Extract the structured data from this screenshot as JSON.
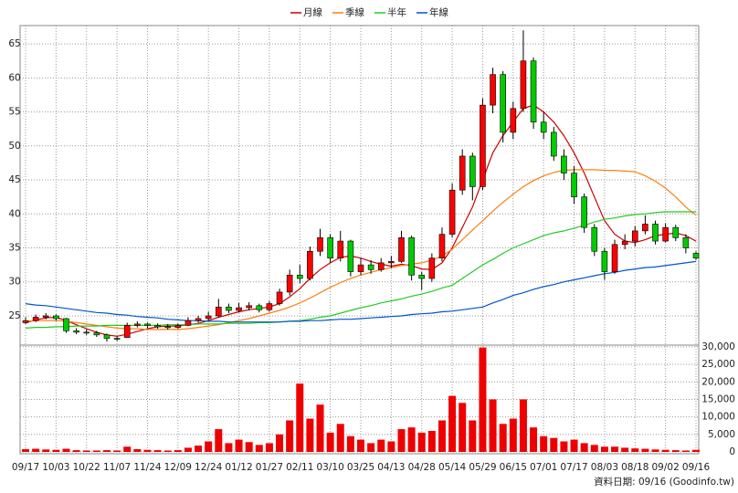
{
  "chart_data": {
    "type": "candlestick",
    "categories": [
      "09/17",
      null,
      null,
      "10/03",
      null,
      null,
      "10/22",
      null,
      null,
      "11/07",
      null,
      null,
      "11/24",
      null,
      null,
      "12/09",
      null,
      null,
      "12/24",
      null,
      null,
      "01/12",
      null,
      null,
      "01/27",
      null,
      null,
      "02/11",
      null,
      null,
      "03/10",
      null,
      null,
      "03/25",
      null,
      null,
      "04/13",
      null,
      null,
      "04/28",
      null,
      null,
      "05/14",
      null,
      null,
      "05/29",
      null,
      null,
      "06/15",
      null,
      null,
      "07/01",
      null,
      null,
      "07/17",
      null,
      null,
      "08/03",
      null,
      null,
      "08/18",
      null,
      null,
      "09/02",
      null,
      null,
      "09/16"
    ],
    "ohlc": [
      [
        24.0,
        24.8,
        23.8,
        24.3
      ],
      [
        24.3,
        25.2,
        24.1,
        24.8
      ],
      [
        24.8,
        25.4,
        24.5,
        25.0
      ],
      [
        25.0,
        25.2,
        24.3,
        24.6
      ],
      [
        24.6,
        24.7,
        22.5,
        22.8
      ],
      [
        22.8,
        23.2,
        22.3,
        22.6
      ],
      [
        22.6,
        23.0,
        22.2,
        22.5
      ],
      [
        22.5,
        22.8,
        21.9,
        22.2
      ],
      [
        22.2,
        22.4,
        21.2,
        21.7
      ],
      [
        21.7,
        22.0,
        21.3,
        21.6
      ],
      [
        21.8,
        24.0,
        21.8,
        23.6
      ],
      [
        23.6,
        24.2,
        23.3,
        23.8
      ],
      [
        23.8,
        24.0,
        23.2,
        23.6
      ],
      [
        23.6,
        23.9,
        23.1,
        23.4
      ],
      [
        23.4,
        23.8,
        23.0,
        23.3
      ],
      [
        23.3,
        23.9,
        23.1,
        23.6
      ],
      [
        23.6,
        24.8,
        23.5,
        24.3
      ],
      [
        24.3,
        25.0,
        24.0,
        24.6
      ],
      [
        24.6,
        25.6,
        24.3,
        25.0
      ],
      [
        25.0,
        27.5,
        24.8,
        26.3
      ],
      [
        26.3,
        26.8,
        25.4,
        25.8
      ],
      [
        25.8,
        26.9,
        25.5,
        26.2
      ],
      [
        26.2,
        27.0,
        25.8,
        26.5
      ],
      [
        26.5,
        26.8,
        25.5,
        25.9
      ],
      [
        25.9,
        27.2,
        25.6,
        26.8
      ],
      [
        26.8,
        29.0,
        26.5,
        28.5
      ],
      [
        28.5,
        31.8,
        28.0,
        31.0
      ],
      [
        31.0,
        32.5,
        29.8,
        30.5
      ],
      [
        30.5,
        35.2,
        30.2,
        34.5
      ],
      [
        34.5,
        37.8,
        33.8,
        36.5
      ],
      [
        36.5,
        37.0,
        32.8,
        33.5
      ],
      [
        33.5,
        37.5,
        33.0,
        36.0
      ],
      [
        36.0,
        36.2,
        30.8,
        31.5
      ],
      [
        31.5,
        33.5,
        31.0,
        32.5
      ],
      [
        32.5,
        33.2,
        31.2,
        31.8
      ],
      [
        31.8,
        33.5,
        31.5,
        32.8
      ],
      [
        32.8,
        33.8,
        32.0,
        33.0
      ],
      [
        33.0,
        37.5,
        32.8,
        36.5
      ],
      [
        36.5,
        36.8,
        30.2,
        31.0
      ],
      [
        31.0,
        31.5,
        28.8,
        30.5
      ],
      [
        30.5,
        34.2,
        30.0,
        33.5
      ],
      [
        33.5,
        38.0,
        33.0,
        37.0
      ],
      [
        37.0,
        44.5,
        36.5,
        43.5
      ],
      [
        43.5,
        49.5,
        42.8,
        48.5
      ],
      [
        48.5,
        49.0,
        42.0,
        44.0
      ],
      [
        44.0,
        57.0,
        43.5,
        56.0
      ],
      [
        56.0,
        61.5,
        54.8,
        60.5
      ],
      [
        60.5,
        61.0,
        50.5,
        52.0
      ],
      [
        52.0,
        56.5,
        51.0,
        55.5
      ],
      [
        55.5,
        67.0,
        55.0,
        62.5
      ],
      [
        62.5,
        63.0,
        52.5,
        53.5
      ],
      [
        53.5,
        55.0,
        51.0,
        52.0
      ],
      [
        52.0,
        52.8,
        47.8,
        48.5
      ],
      [
        48.5,
        49.5,
        45.0,
        46.0
      ],
      [
        46.0,
        47.0,
        41.5,
        42.5
      ],
      [
        42.5,
        43.0,
        37.2,
        38.0
      ],
      [
        38.0,
        38.5,
        33.8,
        34.5
      ],
      [
        34.5,
        35.0,
        30.3,
        31.5
      ],
      [
        31.5,
        36.2,
        31.2,
        35.5
      ],
      [
        35.5,
        37.0,
        34.8,
        36.0
      ],
      [
        36.0,
        38.2,
        35.2,
        37.5
      ],
      [
        37.5,
        39.8,
        37.0,
        38.5
      ],
      [
        38.5,
        39.0,
        35.5,
        36.0
      ],
      [
        36.0,
        38.6,
        35.8,
        38.0
      ],
      [
        38.0,
        38.4,
        36.0,
        36.5
      ],
      [
        36.5,
        37.0,
        34.2,
        35.0
      ],
      [
        34.2,
        34.5,
        33.2,
        33.5
      ]
    ],
    "up_color": "#ff0000",
    "down_color": "#00cc00",
    "series": [
      {
        "name": "月線",
        "color": "#cc0000",
        "values": [
          24.0,
          24.4,
          24.7,
          24.8,
          24.3,
          23.7,
          23.1,
          22.6,
          22.2,
          22.0,
          22.3,
          22.7,
          23.1,
          23.4,
          23.5,
          23.5,
          23.7,
          23.9,
          24.3,
          24.8,
          25.2,
          25.6,
          25.9,
          26.1,
          26.3,
          26.8,
          27.8,
          29.0,
          30.5,
          31.8,
          32.8,
          33.6,
          33.8,
          33.5,
          33.0,
          32.6,
          32.3,
          32.6,
          32.4,
          31.9,
          31.8,
          32.8,
          35.0,
          38.0,
          41.0,
          45.0,
          49.0,
          51.5,
          53.5,
          55.5,
          56.0,
          55.0,
          53.5,
          51.5,
          49.0,
          46.0,
          42.5,
          39.0,
          37.0,
          36.0,
          35.8,
          36.2,
          36.8,
          37.0,
          37.2,
          36.8,
          36.0
        ]
      },
      {
        "name": "季線",
        "color": "#ff7f0e",
        "values": [
          24.2,
          24.3,
          24.3,
          24.3,
          24.2,
          24.0,
          23.8,
          23.6,
          23.4,
          23.2,
          23.1,
          23.1,
          23.0,
          23.0,
          23.0,
          23.0,
          23.1,
          23.3,
          23.5,
          23.7,
          24.0,
          24.3,
          24.6,
          25.0,
          25.4,
          25.8,
          26.3,
          26.9,
          27.6,
          28.4,
          29.2,
          29.9,
          30.5,
          31.0,
          31.4,
          31.8,
          32.1,
          32.4,
          32.6,
          32.8,
          33.2,
          33.8,
          34.8,
          36.2,
          37.6,
          39.0,
          40.4,
          41.7,
          42.9,
          44.0,
          44.9,
          45.6,
          46.1,
          46.4,
          46.5,
          46.5,
          46.5,
          46.4,
          46.4,
          46.3,
          46.2,
          45.6,
          44.8,
          43.8,
          42.5,
          41.0,
          39.8
        ]
      },
      {
        "name": "半年",
        "color": "#22cc22",
        "values": [
          23.2,
          23.3,
          23.3,
          23.4,
          23.4,
          23.5,
          23.5,
          23.5,
          23.6,
          23.6,
          23.6,
          23.6,
          23.6,
          23.6,
          23.7,
          23.7,
          23.7,
          23.8,
          23.8,
          23.8,
          23.9,
          23.9,
          23.9,
          24.0,
          24.0,
          24.1,
          24.2,
          24.3,
          24.5,
          24.8,
          25.0,
          25.4,
          25.8,
          26.2,
          26.5,
          26.9,
          27.2,
          27.5,
          27.9,
          28.2,
          28.6,
          29.1,
          29.5,
          30.5,
          31.5,
          32.5,
          33.3,
          34.2,
          35.0,
          35.6,
          36.2,
          36.8,
          37.2,
          37.5,
          37.9,
          38.3,
          38.8,
          39.2,
          39.4,
          39.7,
          39.9,
          40.0,
          40.2,
          40.3,
          40.3,
          40.3,
          40.3
        ]
      },
      {
        "name": "年線",
        "color": "#0055cc",
        "values": [
          26.8,
          26.6,
          26.5,
          26.3,
          26.1,
          25.9,
          25.7,
          25.5,
          25.4,
          25.2,
          25.1,
          24.9,
          24.8,
          24.7,
          24.5,
          24.4,
          24.3,
          24.3,
          24.2,
          24.2,
          24.1,
          24.1,
          24.1,
          24.1,
          24.1,
          24.1,
          24.2,
          24.2,
          24.3,
          24.3,
          24.4,
          24.5,
          24.5,
          24.6,
          24.7,
          24.8,
          24.9,
          25.0,
          25.2,
          25.3,
          25.4,
          25.6,
          25.7,
          25.9,
          26.1,
          26.3,
          26.9,
          27.4,
          28.0,
          28.4,
          28.9,
          29.3,
          29.6,
          30.0,
          30.3,
          30.6,
          30.9,
          31.2,
          31.4,
          31.7,
          31.9,
          32.1,
          32.2,
          32.4,
          32.6,
          32.8,
          33.0
        ]
      }
    ],
    "volume": [
      800,
      900,
      700,
      600,
      900,
      500,
      400,
      400,
      500,
      400,
      1500,
      800,
      600,
      500,
      400,
      500,
      1200,
      1800,
      3000,
      6500,
      2500,
      3500,
      2800,
      2000,
      2500,
      5000,
      9000,
      19500,
      9500,
      13500,
      5500,
      8000,
      4500,
      3500,
      2500,
      3500,
      3000,
      6500,
      7000,
      5500,
      6000,
      9000,
      16000,
      14000,
      9000,
      29800,
      15000,
      8000,
      9500,
      15000,
      7000,
      4500,
      4000,
      3000,
      3500,
      2500,
      2000,
      1500,
      1500,
      1200,
      1000,
      900,
      700,
      600,
      500,
      400,
      600
    ],
    "volume_color": "#ee0000",
    "ylim": [
      20.7,
      67.7
    ],
    "yticks": [
      25,
      30,
      35,
      40,
      45,
      50,
      55,
      60,
      65
    ],
    "y2lim": [
      0,
      30500
    ],
    "y2ticks": [
      0,
      {
        "value": 5000,
        "label": "5,000"
      },
      {
        "value": 10000,
        "label": "10,000"
      },
      {
        "value": 15000,
        "label": "15,000"
      },
      {
        "value": 20000,
        "label": "20,000"
      },
      {
        "value": 25000,
        "label": "25,000"
      },
      {
        "value": 30000,
        "label": "30,000"
      }
    ],
    "grid": true,
    "note": "資料日期: 09/16 (Goodinfo.tw)"
  }
}
